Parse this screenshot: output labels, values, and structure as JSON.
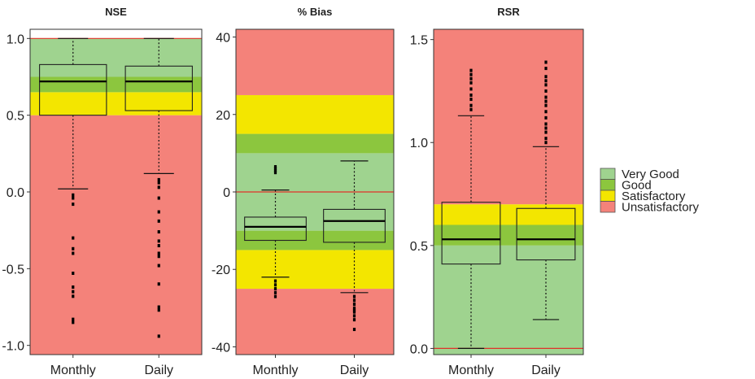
{
  "chart_data": [
    {
      "type": "boxplot",
      "title": "NSE",
      "categories": [
        "Monthly",
        "Daily"
      ],
      "ylim": [
        -1.06,
        1.06
      ],
      "yticks": [
        -1.0,
        -0.5,
        0.0,
        0.5,
        1.0
      ],
      "ytick_labels": [
        "-1.0",
        "-0.5",
        "0.0",
        "0.5",
        "1.0"
      ],
      "bands": [
        {
          "class": "Unsatisfactory",
          "from": -1.06,
          "to": 0.5
        },
        {
          "class": "Satisfactory",
          "from": 0.5,
          "to": 0.65
        },
        {
          "class": "Good",
          "from": 0.65,
          "to": 0.75
        },
        {
          "class": "Very Good",
          "from": 0.75,
          "to": 1.0
        }
      ],
      "reference_line": 1.0,
      "boxes": [
        {
          "category": "Monthly",
          "whisker_low": 0.02,
          "q1": 0.5,
          "median": 0.72,
          "q3": 0.83,
          "whisker_high": 1.0,
          "outliers": [
            -0.02,
            -0.04,
            -0.08,
            -0.3,
            -0.37,
            -0.4,
            -0.53,
            -0.62,
            -0.65,
            -0.68,
            -0.83,
            -0.85
          ]
        },
        {
          "category": "Daily",
          "whisker_low": 0.12,
          "q1": 0.53,
          "median": 0.72,
          "q3": 0.82,
          "whisker_high": 1.0,
          "outliers": [
            0.08,
            0.06,
            0.03,
            -0.04,
            -0.13,
            -0.19,
            -0.26,
            -0.32,
            -0.35,
            -0.4,
            -0.42,
            -0.48,
            -0.6,
            -0.75,
            -0.77,
            -0.94
          ]
        }
      ]
    },
    {
      "type": "boxplot",
      "title": "% Bias",
      "categories": [
        "Monthly",
        "Daily"
      ],
      "ylim": [
        -42,
        42
      ],
      "yticks": [
        -40,
        -20,
        0,
        20,
        40
      ],
      "ytick_labels": [
        "-40",
        "-20",
        "0",
        "20",
        "40"
      ],
      "bands": [
        {
          "class": "Unsatisfactory",
          "from": -42,
          "to": -25
        },
        {
          "class": "Satisfactory",
          "from": -25,
          "to": -15
        },
        {
          "class": "Good",
          "from": -15,
          "to": -10
        },
        {
          "class": "Very Good",
          "from": -10,
          "to": 10
        },
        {
          "class": "Good",
          "from": 10,
          "to": 15
        },
        {
          "class": "Satisfactory",
          "from": 15,
          "to": 25
        },
        {
          "class": "Unsatisfactory",
          "from": 25,
          "to": 42
        }
      ],
      "reference_line": 0,
      "boxes": [
        {
          "category": "Monthly",
          "whisker_low": -22,
          "q1": -12.5,
          "median": -9,
          "q3": -6.5,
          "whisker_high": 0.5,
          "outliers": [
            6.5,
            6.0,
            5.5,
            5.0,
            -23,
            -24,
            -25,
            -26,
            -27
          ]
        },
        {
          "category": "Daily",
          "whisker_low": -26,
          "q1": -13,
          "median": -7.5,
          "q3": -4.5,
          "whisker_high": 8,
          "outliers": [
            -27,
            -28,
            -29,
            -30,
            -30.5,
            -31,
            -32,
            -33,
            -35.5
          ]
        }
      ]
    },
    {
      "type": "boxplot",
      "title": "RSR",
      "categories": [
        "Monthly",
        "Daily"
      ],
      "ylim": [
        -0.03,
        1.55
      ],
      "yticks": [
        0.0,
        0.5,
        1.0,
        1.5
      ],
      "ytick_labels": [
        "0.0",
        "0.5",
        "1.0",
        "1.5"
      ],
      "bands": [
        {
          "class": "Very Good",
          "from": -0.03,
          "to": 0.5
        },
        {
          "class": "Good",
          "from": 0.5,
          "to": 0.6
        },
        {
          "class": "Satisfactory",
          "from": 0.6,
          "to": 0.7
        },
        {
          "class": "Unsatisfactory",
          "from": 0.7,
          "to": 1.55
        }
      ],
      "reference_line": 0.0,
      "boxes": [
        {
          "category": "Monthly",
          "whisker_low": 0.0,
          "q1": 0.41,
          "median": 0.53,
          "q3": 0.71,
          "whisker_high": 1.13,
          "outliers": [
            1.16,
            1.18,
            1.21,
            1.23,
            1.26,
            1.29,
            1.31,
            1.33,
            1.35
          ]
        },
        {
          "category": "Daily",
          "whisker_low": 0.14,
          "q1": 0.43,
          "median": 0.53,
          "q3": 0.68,
          "whisker_high": 0.98,
          "outliers": [
            1.0,
            1.02,
            1.05,
            1.07,
            1.09,
            1.12,
            1.15,
            1.18,
            1.2,
            1.22,
            1.25,
            1.28,
            1.3,
            1.32,
            1.36,
            1.39
          ]
        }
      ]
    }
  ],
  "legend": {
    "placement": "right",
    "items": [
      {
        "label": "Very Good",
        "class": "Very Good"
      },
      {
        "label": "Good",
        "class": "Good"
      },
      {
        "label": "Satisfactory",
        "class": "Satisfactory"
      },
      {
        "label": "Unsatisfactory",
        "class": "Unsatisfactory"
      }
    ]
  },
  "colors": {
    "Very Good": "#9fd38f",
    "Good": "#8cc63e",
    "Satisfactory": "#f3e600",
    "Unsatisfactory": "#f4827a",
    "reference_line": "#e0322a",
    "box_stroke": "#222222",
    "text": "#222222"
  }
}
